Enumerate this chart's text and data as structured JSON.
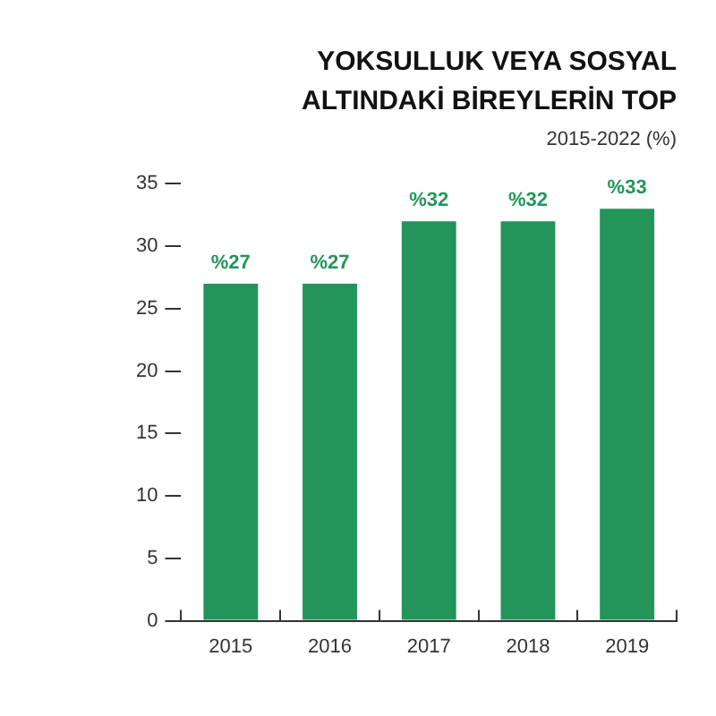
{
  "chart_data": {
    "type": "bar",
    "title": "YOKSULLUK VEYA SOSYAL ALTINDAKİ BİREYLERİN TOP",
    "subtitle": "2015-2022 (%)",
    "categories": [
      "2015",
      "2016",
      "2017",
      "2018",
      "2019"
    ],
    "values": [
      27,
      27,
      32,
      32,
      33
    ],
    "color": "#23955a",
    "value_labels": [
      "%27",
      "%27",
      "%32",
      "%32",
      "%33"
    ],
    "ylim": [
      0,
      35
    ],
    "yticks": [
      0,
      5,
      10,
      15,
      20,
      25,
      30,
      35
    ]
  }
}
